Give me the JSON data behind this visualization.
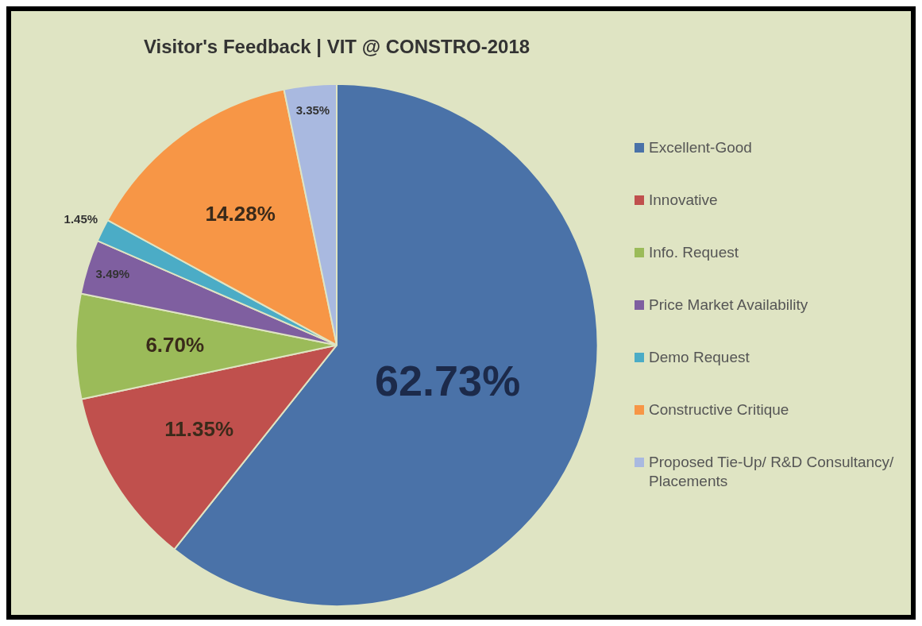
{
  "chart_data": {
    "type": "pie",
    "title": "Visitor's Feedback | VIT @ CONSTRO-2018",
    "categories": [
      "Excellent-Good",
      "Innovative",
      "Info. Request",
      "Price Market Availability",
      "Demo Request",
      "Constructive Critique",
      "Proposed Tie-Up/ R&D Consultancy/ Placements"
    ],
    "values": [
      62.73,
      11.35,
      6.7,
      3.49,
      1.45,
      14.28,
      3.35
    ],
    "value_labels": [
      "62.73%",
      "11.35%",
      "6.70%",
      "3.49%",
      "1.45%",
      "14.28%",
      "3.35%"
    ],
    "colors": [
      "#4a72a8",
      "#c0504d",
      "#9bbb59",
      "#7f5fa0",
      "#4bacc6",
      "#f79646",
      "#a9b9e0"
    ],
    "legend": "right"
  }
}
